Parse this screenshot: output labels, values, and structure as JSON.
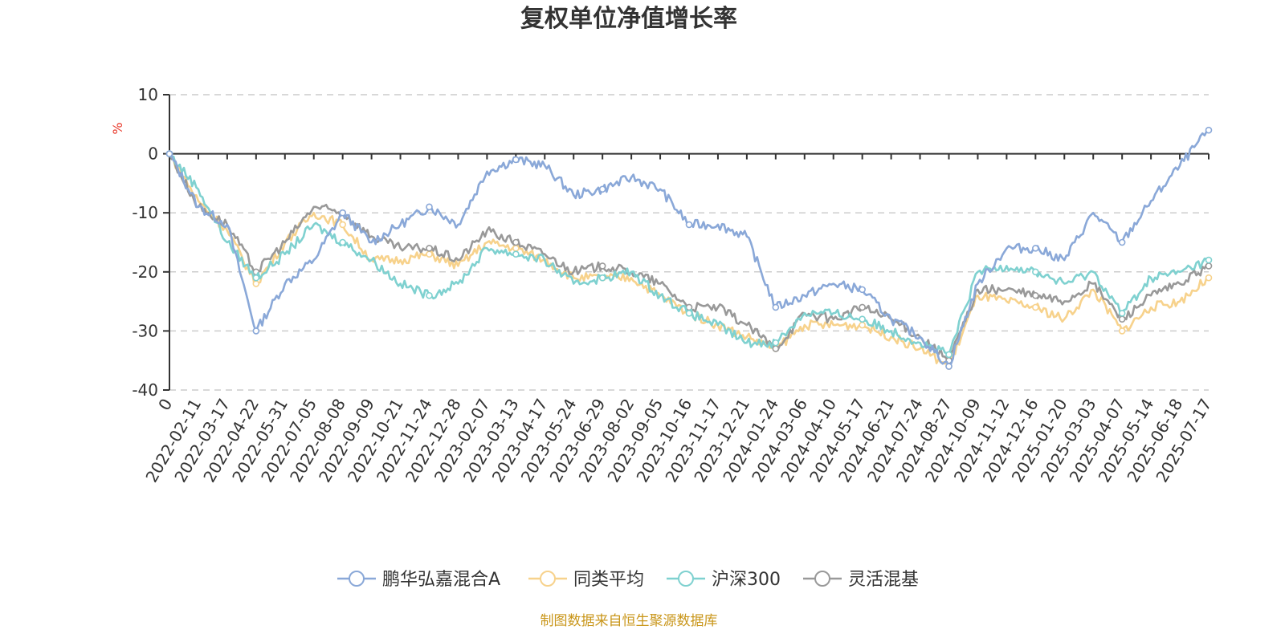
{
  "chart_data": {
    "type": "line",
    "title": "复权单位净值增长率",
    "ylabel": "%",
    "ylim": [
      -40,
      10
    ],
    "yticks": [
      10,
      0,
      -10,
      -20,
      -30,
      -40
    ],
    "grid": true,
    "legend_position": "bottom",
    "x_tick_labels": [
      "0",
      "2022-02-11",
      "2022-03-17",
      "2022-04-22",
      "2022-05-31",
      "2022-07-05",
      "2022-08-08",
      "2022-09-09",
      "2022-10-21",
      "2022-11-24",
      "2022-12-28",
      "2023-02-07",
      "2023-03-13",
      "2023-04-17",
      "2023-05-24",
      "2023-06-29",
      "2023-08-02",
      "2023-09-05",
      "2023-10-16",
      "2023-11-17",
      "2023-12-21",
      "2024-01-24",
      "2024-03-06",
      "2024-04-10",
      "2024-05-17",
      "2024-06-21",
      "2024-07-24",
      "2024-08-27",
      "2024-10-09",
      "2024-11-12",
      "2024-12-16",
      "2025-01-20",
      "2025-03-03",
      "2025-04-07",
      "2025-05-14",
      "2025-06-18",
      "2025-07-17"
    ],
    "series": [
      {
        "name": "鹏华弘嘉混合A",
        "color": "#8aa8d8",
        "values": [
          0,
          -9,
          -12,
          -30,
          -22,
          -18,
          -10,
          -15,
          -12,
          -9,
          -12,
          -3,
          -1,
          -2,
          -7,
          -6,
          -4,
          -6,
          -12,
          -12,
          -14,
          -26,
          -24,
          -22,
          -23,
          -28,
          -31,
          -36,
          -22,
          -16,
          -16,
          -18,
          -10,
          -15,
          -8,
          -2,
          4
        ]
      },
      {
        "name": "同类平均",
        "color": "#f7d28c",
        "values": [
          0,
          -8,
          -13,
          -22,
          -15,
          -10,
          -12,
          -18,
          -18,
          -17,
          -19,
          -15,
          -16,
          -18,
          -21,
          -21,
          -21,
          -24,
          -27,
          -29,
          -31,
          -33,
          -29,
          -29,
          -29,
          -31,
          -33,
          -36,
          -24,
          -25,
          -26,
          -28,
          -23,
          -30,
          -26,
          -25,
          -21
        ]
      },
      {
        "name": "沪深300",
        "color": "#7fd1d0",
        "values": [
          0,
          -6,
          -15,
          -21,
          -17,
          -12,
          -15,
          -18,
          -22,
          -24,
          -22,
          -16,
          -17,
          -18,
          -22,
          -21,
          -20,
          -24,
          -27,
          -29,
          -32,
          -32,
          -27,
          -27,
          -28,
          -30,
          -32,
          -34,
          -20,
          -19,
          -20,
          -22,
          -20,
          -27,
          -21,
          -20,
          -18
        ]
      },
      {
        "name": "灵活混基",
        "color": "#999999",
        "values": [
          0,
          -9,
          -12,
          -20,
          -15,
          -9,
          -10,
          -14,
          -16,
          -16,
          -18,
          -13,
          -15,
          -17,
          -20,
          -19,
          -20,
          -22,
          -26,
          -26,
          -29,
          -33,
          -27,
          -28,
          -26,
          -28,
          -31,
          -35,
          -23,
          -23,
          -24,
          -25,
          -22,
          -28,
          -24,
          -22,
          -19
        ]
      }
    ]
  },
  "footer": {
    "source": "制图数据来自恒生聚源数据库"
  }
}
